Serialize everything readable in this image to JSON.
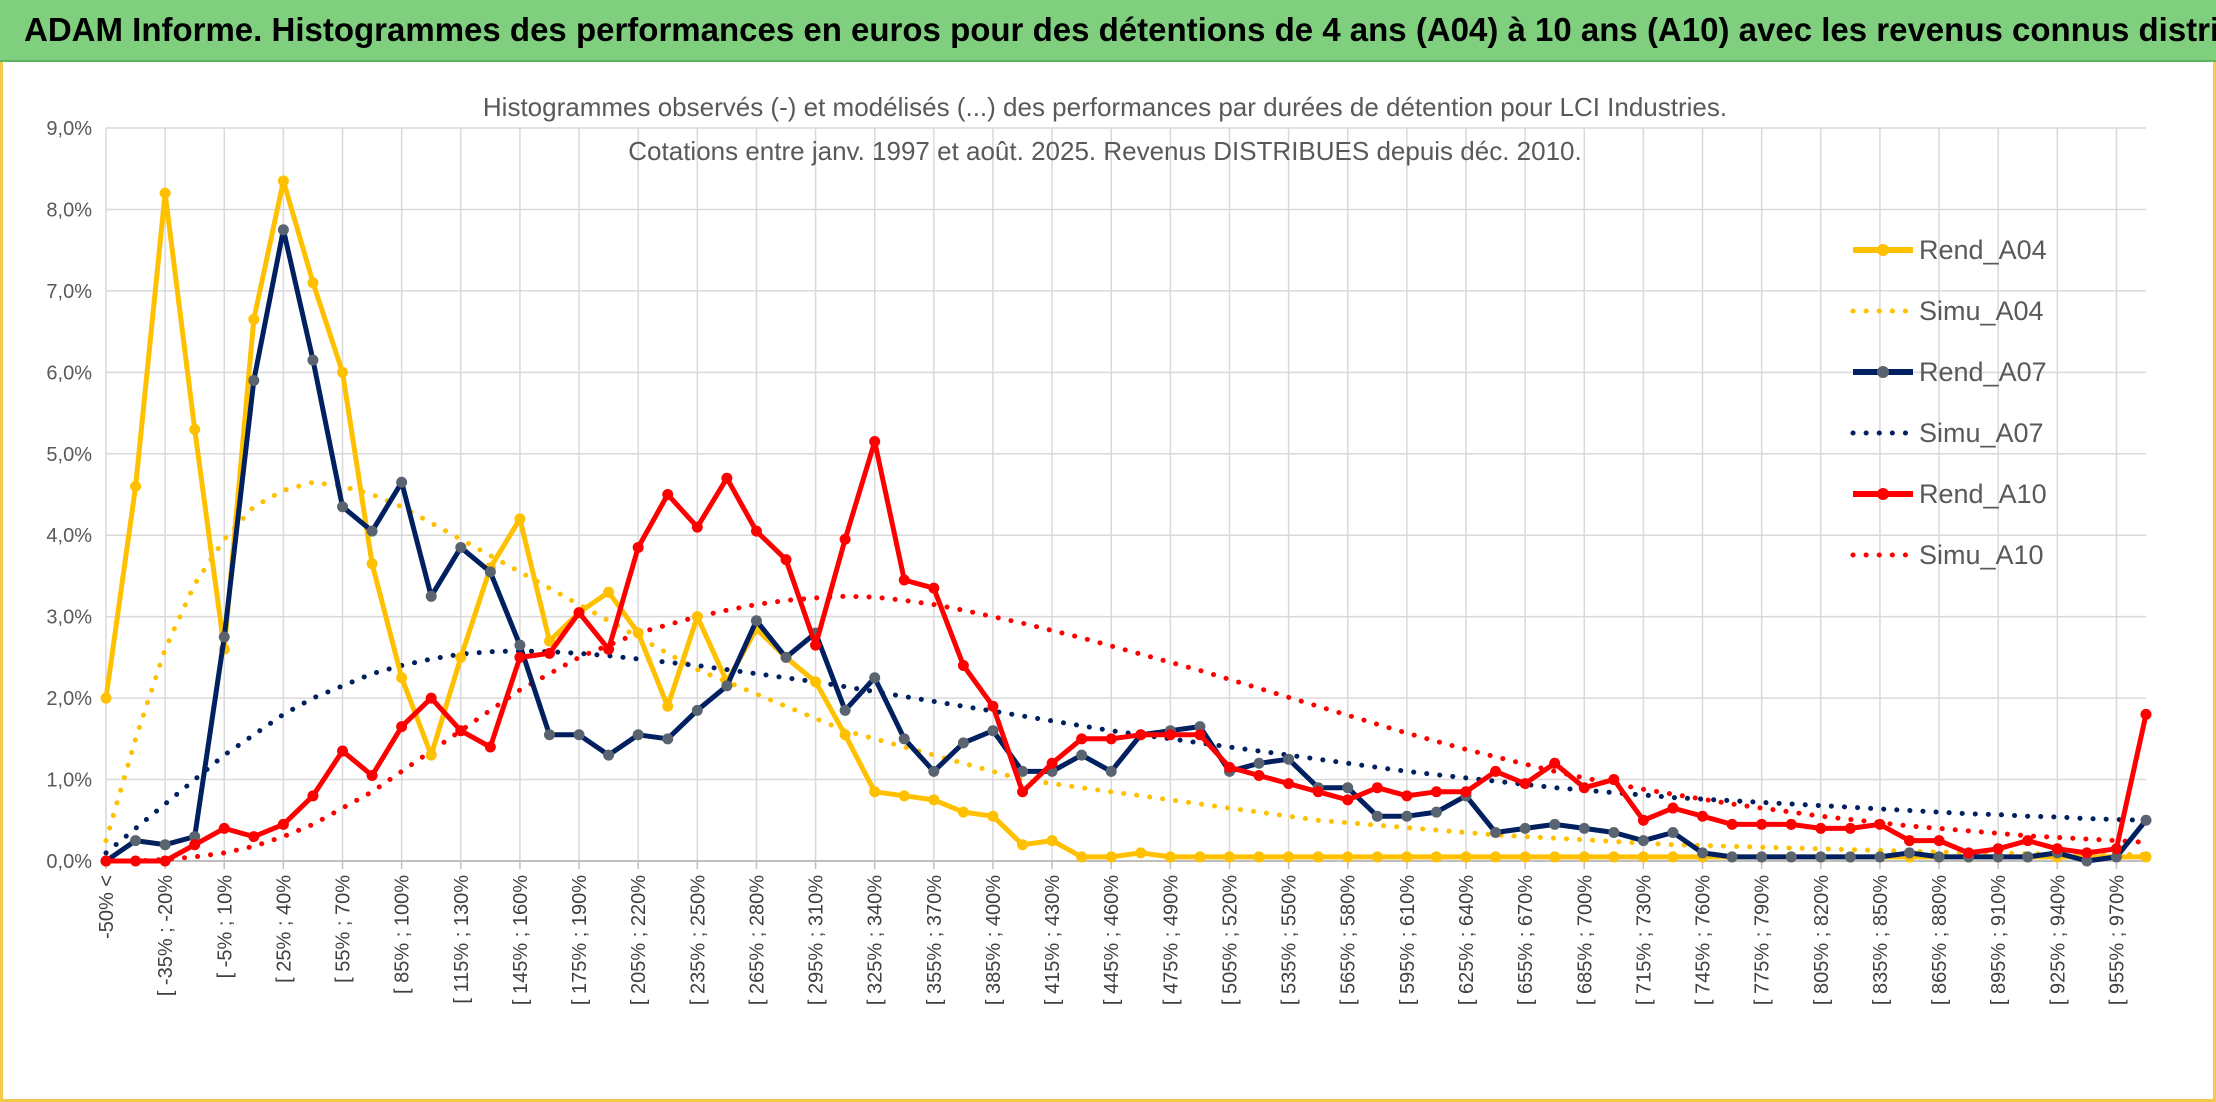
{
  "banner": {
    "title": "ADAM Informe. Histogrammes des performances en euros pour des détentions de 4 ans (A04) à 10 ans (A10) avec les revenus connus distribués"
  },
  "colors": {
    "A04": "#FFC000",
    "A07": "#002060",
    "A07_marker": "#5a6470",
    "A10": "#FF0000",
    "grid": "#d9d9d9",
    "banner": "#7fcf7f",
    "frame": "#f2c94c"
  },
  "chart_data": {
    "type": "line",
    "title_line1": "Histogrammes observés (-) et modélisés (...) des performances par durées de détention pour LCI Industries.",
    "title_line2": "Cotations entre janv. 1997 et août. 2025. Revenus DISTRIBUES depuis déc. 2010.",
    "ylim": [
      0,
      9
    ],
    "yticks": [
      "0,0%",
      "1,0%",
      "2,0%",
      "3,0%",
      "4,0%",
      "5,0%",
      "6,0%",
      "7,0%",
      "8,0%",
      "9,0%"
    ],
    "legend_position": "right",
    "x_labels": [
      "-50% <",
      "[ -35% ; -20%",
      "[ -5% ; 10%",
      "[ 25% ; 40%",
      "[ 55% ; 70%",
      "[ 85% ; 100%",
      "[ 115% ; 130%",
      "[ 145% ; 160%",
      "[ 175% ; 190%",
      "[ 205% ; 220%",
      "[ 235% ; 250%",
      "[ 265% ; 280%",
      "[ 295% ; 310%",
      "[ 325% ; 340%",
      "[ 355% ; 370%",
      "[ 385% ; 400%",
      "[ 415% ; 430%",
      "[ 445% ; 460%",
      "[ 475% ; 490%",
      "[ 505% ; 520%",
      "[ 535% ; 550%",
      "[ 565% ; 580%",
      "[ 595% ; 610%",
      "[ 625% ; 640%",
      "[ 655% ; 670%",
      "[ 685% ; 700%",
      "[ 715% ; 730%",
      "[ 745% ; 760%",
      "[ 775% ; 790%",
      "[ 805% ; 820%",
      "[ 835% ; 850%",
      "[ 865% ; 880%",
      "[ 895% ; 910%",
      "[ 925% ; 940%",
      "[ 955% ; 970%"
    ],
    "x_label_step": 2,
    "series": [
      {
        "name": "Rend_A04",
        "style": "solid",
        "color": "#FFC000",
        "values": [
          2.0,
          4.6,
          8.2,
          5.3,
          2.6,
          6.65,
          8.35,
          7.1,
          6.0,
          3.65,
          2.25,
          1.3,
          2.5,
          3.6,
          4.2,
          2.7,
          3.05,
          3.3,
          2.8,
          1.9,
          3.0,
          2.2,
          2.85,
          2.5,
          2.2,
          1.55,
          0.85,
          0.8,
          0.75,
          0.6,
          0.55,
          0.2,
          0.25,
          0.05,
          0.05,
          0.1,
          0.05,
          0.05,
          0.05,
          0.05,
          0.05,
          0.05,
          0.05,
          0.05,
          0.05,
          0.05,
          0.05,
          0.05,
          0.05,
          0.05,
          0.05,
          0.05,
          0.05,
          0.05,
          0.05,
          0.05,
          0.05,
          0.05,
          0.05,
          0.05,
          0.05,
          0.05,
          0.05,
          0.05,
          0.05,
          0.05,
          0.05,
          0.05,
          0.05,
          0.05
        ]
      },
      {
        "name": "Simu_A04",
        "style": "dotted",
        "color": "#FFC000",
        "values": [
          0.25,
          1.5,
          2.6,
          3.4,
          3.95,
          4.35,
          4.55,
          4.65,
          4.6,
          4.5,
          4.35,
          4.15,
          3.95,
          3.75,
          3.55,
          3.35,
          3.15,
          2.95,
          2.75,
          2.55,
          2.35,
          2.2,
          2.05,
          1.9,
          1.75,
          1.6,
          1.5,
          1.4,
          1.3,
          1.2,
          1.1,
          1.0,
          0.95,
          0.9,
          0.85,
          0.8,
          0.75,
          0.7,
          0.65,
          0.6,
          0.55,
          0.5,
          0.47,
          0.44,
          0.41,
          0.38,
          0.35,
          0.32,
          0.3,
          0.28,
          0.26,
          0.24,
          0.22,
          0.2,
          0.19,
          0.18,
          0.17,
          0.16,
          0.15,
          0.14,
          0.13,
          0.12,
          0.11,
          0.1,
          0.1,
          0.09,
          0.09,
          0.08,
          0.08,
          0.08
        ]
      },
      {
        "name": "Rend_A07",
        "style": "solid",
        "color": "#002060",
        "values": [
          0.0,
          0.25,
          0.2,
          0.3,
          2.75,
          5.9,
          7.75,
          6.15,
          4.35,
          4.05,
          4.65,
          3.25,
          3.85,
          3.55,
          2.65,
          1.55,
          1.55,
          1.3,
          1.55,
          1.5,
          1.85,
          2.15,
          2.95,
          2.5,
          2.8,
          1.85,
          2.25,
          1.5,
          1.1,
          1.45,
          1.6,
          1.1,
          1.1,
          1.3,
          1.1,
          1.55,
          1.6,
          1.65,
          1.1,
          1.2,
          1.25,
          0.9,
          0.9,
          0.55,
          0.55,
          0.6,
          0.8,
          0.35,
          0.4,
          0.45,
          0.4,
          0.35,
          0.25,
          0.35,
          0.1,
          0.05,
          0.05,
          0.05,
          0.05,
          0.05,
          0.05,
          0.1,
          0.05,
          0.05,
          0.05,
          0.05,
          0.1,
          0.0,
          0.05,
          0.5
        ]
      },
      {
        "name": "Simu_A07",
        "style": "dotted",
        "color": "#002060",
        "values": [
          0.1,
          0.4,
          0.7,
          1.0,
          1.3,
          1.55,
          1.8,
          2.0,
          2.15,
          2.3,
          2.4,
          2.48,
          2.54,
          2.57,
          2.58,
          2.57,
          2.55,
          2.52,
          2.48,
          2.44,
          2.4,
          2.35,
          2.3,
          2.25,
          2.2,
          2.14,
          2.08,
          2.02,
          1.96,
          1.9,
          1.84,
          1.78,
          1.72,
          1.66,
          1.6,
          1.55,
          1.5,
          1.45,
          1.4,
          1.35,
          1.3,
          1.25,
          1.2,
          1.15,
          1.1,
          1.06,
          1.02,
          0.98,
          0.94,
          0.9,
          0.87,
          0.84,
          0.81,
          0.78,
          0.76,
          0.74,
          0.72,
          0.7,
          0.68,
          0.66,
          0.64,
          0.62,
          0.6,
          0.58,
          0.57,
          0.55,
          0.54,
          0.52,
          0.51,
          0.5
        ]
      },
      {
        "name": "Rend_A10",
        "style": "solid",
        "color": "#FF0000",
        "values": [
          0.0,
          0.0,
          0.0,
          0.2,
          0.4,
          0.3,
          0.45,
          0.8,
          1.35,
          1.05,
          1.65,
          2.0,
          1.6,
          1.4,
          2.5,
          2.55,
          3.05,
          2.6,
          3.85,
          4.5,
          4.1,
          4.7,
          4.05,
          3.7,
          2.65,
          3.95,
          5.15,
          3.45,
          3.35,
          2.4,
          1.9,
          0.85,
          1.2,
          1.5,
          1.5,
          1.55,
          1.55,
          1.55,
          1.15,
          1.05,
          0.95,
          0.85,
          0.75,
          0.9,
          0.8,
          0.85,
          0.85,
          1.1,
          0.95,
          1.2,
          0.9,
          1.0,
          0.5,
          0.65,
          0.55,
          0.45,
          0.45,
          0.45,
          0.4,
          0.4,
          0.45,
          0.25,
          0.25,
          0.1,
          0.15,
          0.25,
          0.15,
          0.1,
          0.15,
          1.8
        ]
      },
      {
        "name": "Simu_A10",
        "style": "dotted",
        "color": "#FF0000",
        "values": [
          0.0,
          0.0,
          0.02,
          0.05,
          0.1,
          0.18,
          0.3,
          0.45,
          0.65,
          0.85,
          1.1,
          1.35,
          1.6,
          1.85,
          2.1,
          2.3,
          2.5,
          2.65,
          2.8,
          2.9,
          3.0,
          3.08,
          3.15,
          3.2,
          3.23,
          3.25,
          3.24,
          3.2,
          3.15,
          3.08,
          3.0,
          2.92,
          2.83,
          2.74,
          2.64,
          2.54,
          2.44,
          2.34,
          2.23,
          2.12,
          2.01,
          1.9,
          1.79,
          1.68,
          1.57,
          1.47,
          1.37,
          1.28,
          1.19,
          1.1,
          1.02,
          0.95,
          0.88,
          0.82,
          0.76,
          0.7,
          0.65,
          0.6,
          0.55,
          0.51,
          0.47,
          0.43,
          0.4,
          0.37,
          0.34,
          0.31,
          0.29,
          0.27,
          0.25,
          0.23
        ]
      }
    ]
  }
}
